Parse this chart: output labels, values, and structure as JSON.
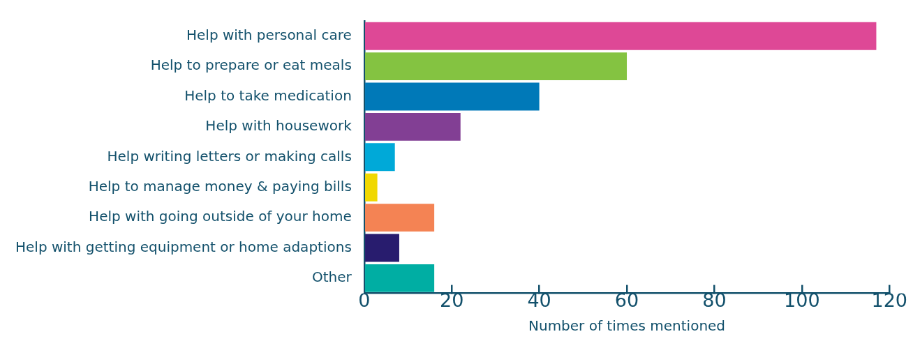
{
  "chart_data": {
    "type": "bar",
    "orientation": "horizontal",
    "xlabel": "Number of times mentioned",
    "categories": [
      "Help with personal care",
      "Help to prepare or eat meals",
      "Help to take medication",
      "Help with housework",
      "Help writing letters or making calls",
      "Help to manage money & paying bills",
      "Help with going outside of your home",
      "Help with getting equipment or home adaptions",
      "Other"
    ],
    "values": [
      117,
      60,
      40,
      22,
      7,
      3,
      16,
      8,
      16
    ],
    "colors": [
      "#de4896",
      "#84c341",
      "#0079b8",
      "#823f94",
      "#00a9d8",
      "#f0d800",
      "#f48354",
      "#281c6e",
      "#00aea3"
    ],
    "xlim": [
      0,
      120
    ],
    "xticks": [
      0,
      20,
      40,
      60,
      80,
      100,
      120
    ],
    "grid": false,
    "legend": false
  }
}
